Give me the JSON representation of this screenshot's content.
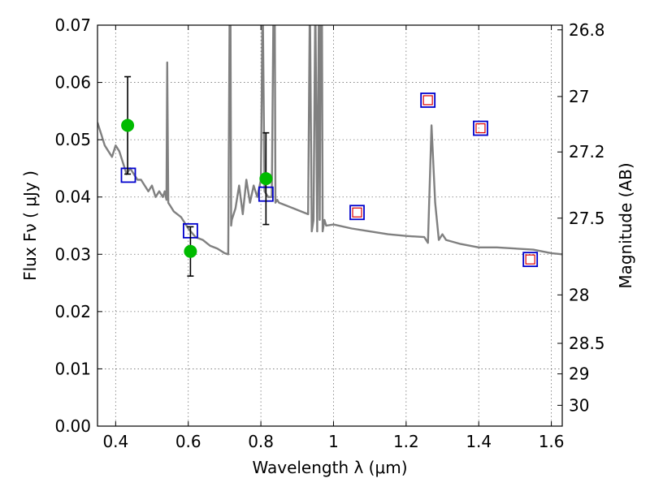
{
  "chart_data": {
    "type": "scatter",
    "xlabel": "Wavelength  λ (μm)",
    "ylabel": "Flux  Fν  ( μJy )",
    "y2label": "Magnitude (AB)",
    "xlim": [
      0.35,
      1.63
    ],
    "ylim": [
      0.0,
      0.07
    ],
    "grid": true,
    "x_ticks": [
      0.4,
      0.6,
      0.8,
      1.0,
      1.2,
      1.4,
      1.6
    ],
    "x_tick_labels": [
      "0.4",
      "0.6",
      "0.8",
      "1",
      "1.2",
      "1.4",
      "1.6"
    ],
    "y_ticks": [
      0.0,
      0.01,
      0.02,
      0.03,
      0.04,
      0.05,
      0.06,
      0.07
    ],
    "y_tick_labels": [
      "0.00",
      "0.01",
      "0.02",
      "0.03",
      "0.04",
      "0.05",
      "0.06",
      "0.07"
    ],
    "y2_ticks": [
      26.8,
      27,
      27.2,
      27.5,
      28,
      28.5,
      29,
      30
    ],
    "y2_tick_labels": [
      "26.8",
      "27",
      "27.2",
      "27.5",
      "28",
      "28.5",
      "29",
      "30"
    ],
    "colors": {
      "spectrum": "#808080",
      "observed": "#00bb00",
      "model_band": "#0000cc",
      "model_band_inner": "#dd0000",
      "errorbar": "#000000"
    },
    "series": [
      {
        "kind": "line",
        "x": [
          0.35,
          0.36,
          0.37,
          0.38,
          0.39,
          0.4,
          0.41,
          0.42,
          0.43,
          0.44,
          0.45,
          0.46,
          0.47,
          0.48,
          0.49,
          0.5,
          0.51,
          0.52,
          0.53,
          0.535,
          0.54,
          0.542,
          0.545,
          0.55,
          0.56,
          0.58,
          0.6,
          0.62,
          0.64,
          0.66,
          0.68,
          0.7,
          0.71,
          0.714,
          0.716,
          0.718,
          0.72,
          0.73,
          0.74,
          0.75,
          0.76,
          0.77,
          0.78,
          0.79,
          0.8,
          0.805,
          0.81,
          0.82,
          0.83,
          0.835,
          0.838,
          0.84,
          0.845,
          0.85,
          0.87,
          0.89,
          0.91,
          0.93,
          0.935,
          0.94,
          0.945,
          0.95,
          0.955,
          0.96,
          0.962,
          0.965,
          0.968,
          0.97,
          0.975,
          0.98,
          1.0,
          1.05,
          1.1,
          1.15,
          1.2,
          1.25,
          1.26,
          1.27,
          1.28,
          1.29,
          1.3,
          1.31,
          1.35,
          1.4,
          1.45,
          1.5,
          1.55,
          1.6,
          1.63
        ],
        "y": [
          0.053,
          0.051,
          0.049,
          0.048,
          0.047,
          0.049,
          0.048,
          0.046,
          0.044,
          0.045,
          0.044,
          0.043,
          0.043,
          0.042,
          0.041,
          0.042,
          0.04,
          0.041,
          0.04,
          0.041,
          0.0395,
          0.0635,
          0.039,
          0.0385,
          0.0375,
          0.0365,
          0.0345,
          0.033,
          0.0325,
          0.0315,
          0.031,
          0.0302,
          0.03,
          0.075,
          0.075,
          0.035,
          0.036,
          0.038,
          0.042,
          0.037,
          0.043,
          0.039,
          0.042,
          0.04,
          0.043,
          0.075,
          0.041,
          0.04,
          0.04,
          0.075,
          0.075,
          0.039,
          0.0395,
          0.039,
          0.0385,
          0.038,
          0.0375,
          0.037,
          0.075,
          0.034,
          0.036,
          0.075,
          0.034,
          0.075,
          0.036,
          0.075,
          0.075,
          0.034,
          0.036,
          0.035,
          0.0352,
          0.0345,
          0.034,
          0.0335,
          0.0332,
          0.033,
          0.032,
          0.0525,
          0.039,
          0.0325,
          0.0335,
          0.0325,
          0.0318,
          0.0312,
          0.0312,
          0.031,
          0.0308,
          0.0302,
          0.03
        ]
      },
      {
        "kind": "observed",
        "points": [
          {
            "x": 0.433,
            "y": 0.0525,
            "err_lo": 0.044,
            "err_hi": 0.061
          },
          {
            "x": 0.606,
            "y": 0.0305,
            "err_lo": 0.0262,
            "err_hi": 0.0348
          },
          {
            "x": 0.814,
            "y": 0.0432,
            "err_lo": 0.0352,
            "err_hi": 0.0512
          }
        ]
      },
      {
        "kind": "model_band",
        "points": [
          {
            "x": 0.435,
            "y": 0.0438
          },
          {
            "x": 0.606,
            "y": 0.0341
          },
          {
            "x": 0.814,
            "y": 0.0405
          },
          {
            "x": 1.065,
            "y": 0.0373
          },
          {
            "x": 1.26,
            "y": 0.0569
          },
          {
            "x": 1.405,
            "y": 0.052
          },
          {
            "x": 1.542,
            "y": 0.0291
          }
        ]
      }
    ]
  }
}
